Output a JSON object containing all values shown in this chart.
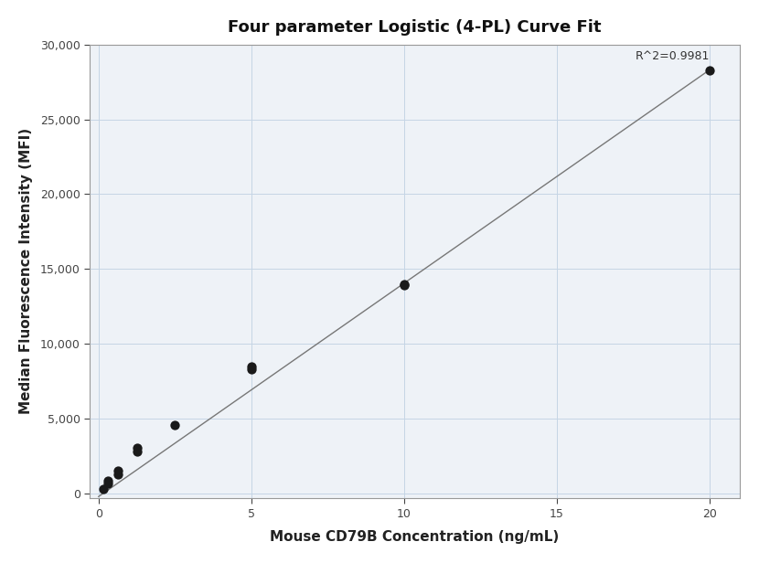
{
  "title": "Four parameter Logistic (4-PL) Curve Fit",
  "xlabel": "Mouse CD79B Concentration (ng/mL)",
  "ylabel": "Median Fluorescence Intensity (MFI)",
  "r_squared": "R^2=0.9981",
  "scatter_x": [
    0.156,
    0.313,
    0.313,
    0.625,
    0.625,
    1.25,
    1.25,
    2.5,
    5.0,
    5.0,
    10.0,
    10.0,
    20.0
  ],
  "scatter_y": [
    300,
    700,
    850,
    1300,
    1550,
    2800,
    3050,
    4600,
    8300,
    8500,
    13900,
    14000,
    28300
  ],
  "xlim": [
    -0.3,
    21
  ],
  "ylim": [
    -300,
    30000
  ],
  "xticks": [
    0,
    5,
    10,
    15,
    20
  ],
  "yticks": [
    0,
    5000,
    10000,
    15000,
    20000,
    25000,
    30000
  ],
  "line_color": "#777777",
  "scatter_color": "#1a1a1a",
  "scatter_size": 55,
  "background_color": "#ffffff",
  "plot_bg_color": "#eef2f7",
  "grid_color": "#c5d5e5",
  "title_fontsize": 13,
  "label_fontsize": 11,
  "tick_fontsize": 9,
  "annotation_fontsize": 9,
  "r2_x": 20.0,
  "r2_y": 29600,
  "line_x0": 0.0,
  "line_y0": -200,
  "line_x1": 20.0,
  "line_y1": 28300,
  "spine_color": "#999999"
}
